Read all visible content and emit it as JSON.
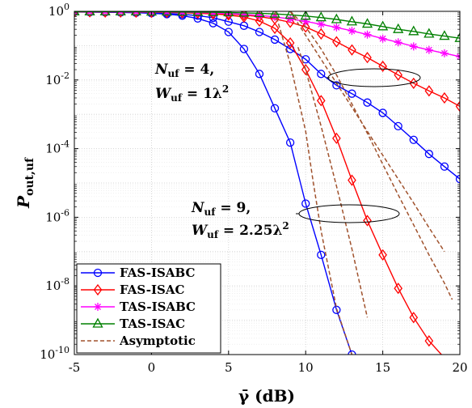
{
  "chart_data": {
    "type": "line",
    "xlabel": "γ̄ (dB)",
    "ylabel": "Pout,uf",
    "xlim": [
      -5,
      20
    ],
    "ylim": [
      1e-10,
      1
    ],
    "y_scale": "log",
    "grid": true,
    "legend_position": "bottom-left",
    "x_ticks": [
      "-5",
      "0",
      "5",
      "10",
      "15",
      "20"
    ],
    "y_ticks": [
      {
        "base": "10",
        "exp": "0"
      },
      {
        "base": "10",
        "exp": "-2"
      },
      {
        "base": "10",
        "exp": "-4"
      },
      {
        "base": "10",
        "exp": "-6"
      },
      {
        "base": "10",
        "exp": "-8"
      },
      {
        "base": "10",
        "exp": "-10"
      }
    ],
    "annotations": [
      {
        "line1": "Nuf = 4,",
        "line2": "Wuf = 1λ2"
      },
      {
        "line1": "Nuf = 9,",
        "line2": "Wuf = 2.25λ2"
      }
    ],
    "legend": [
      "FAS-ISABC",
      "FAS-ISAC",
      "TAS-ISABC",
      "TAS-ISAC",
      "Asymptotic"
    ],
    "colors": {
      "fas_isabc": "#0000ff",
      "fas_isac": "#ff0000",
      "tas_isabc": "#ff00ff",
      "tas_isac": "#008000",
      "asymptotic": "#a0522d"
    },
    "series": [
      {
        "name": "FAS-ISABC",
        "group": "N=4, W=1λ²",
        "marker": "circle",
        "color": "#0000ff",
        "x": [
          -5,
          -4,
          -3,
          -2,
          -1,
          0,
          1,
          2,
          3,
          4,
          5,
          6,
          7,
          8,
          9,
          10,
          11,
          12,
          13,
          14,
          15,
          16,
          17,
          18,
          19,
          20
        ],
        "y": [
          0.96,
          0.95,
          0.94,
          0.93,
          0.92,
          0.9,
          0.87,
          0.82,
          0.75,
          0.65,
          0.5,
          0.38,
          0.25,
          0.15,
          0.08,
          0.04,
          0.015,
          0.007,
          0.004,
          0.0022,
          0.0011,
          0.00045,
          0.00018,
          7e-05,
          3e-05,
          1.3e-05
        ]
      },
      {
        "name": "FAS-ISABC",
        "group": "N=9, W=2.25λ²",
        "marker": "circle",
        "color": "#0000ff",
        "x": [
          -5,
          -4,
          -3,
          -2,
          -1,
          0,
          1,
          2,
          3,
          4,
          5,
          6,
          7,
          8,
          9,
          10,
          11,
          12,
          13,
          13.3
        ],
        "y": [
          0.96,
          0.95,
          0.94,
          0.93,
          0.91,
          0.88,
          0.83,
          0.75,
          0.62,
          0.45,
          0.25,
          0.08,
          0.015,
          0.0015,
          0.00015,
          2.5e-06,
          8e-08,
          2e-09,
          1e-10,
          5e-11
        ]
      },
      {
        "name": "FAS-ISAC",
        "group": "N=4, W=1λ²",
        "marker": "diamond",
        "color": "#ff0000",
        "x": [
          -5,
          -4,
          -3,
          -2,
          -1,
          0,
          1,
          2,
          3,
          4,
          5,
          6,
          7,
          8,
          9,
          10,
          11,
          12,
          13,
          14,
          15,
          16,
          17,
          18,
          19,
          20
        ],
        "y": [
          0.97,
          0.97,
          0.96,
          0.96,
          0.95,
          0.95,
          0.94,
          0.93,
          0.91,
          0.88,
          0.84,
          0.78,
          0.7,
          0.6,
          0.48,
          0.35,
          0.22,
          0.13,
          0.075,
          0.045,
          0.025,
          0.014,
          0.008,
          0.0048,
          0.003,
          0.0017
        ]
      },
      {
        "name": "FAS-ISAC",
        "group": "N=9, W=2.25λ²",
        "marker": "diamond",
        "color": "#ff0000",
        "x": [
          -5,
          -4,
          -3,
          -2,
          -1,
          0,
          1,
          2,
          3,
          4,
          5,
          6,
          7,
          8,
          9,
          10,
          11,
          12,
          13,
          14,
          15,
          16,
          17,
          18,
          19,
          20
        ],
        "y": [
          0.97,
          0.97,
          0.96,
          0.96,
          0.95,
          0.94,
          0.93,
          0.91,
          0.88,
          0.84,
          0.78,
          0.68,
          0.52,
          0.32,
          0.12,
          0.02,
          0.0025,
          0.0002,
          1.2e-05,
          8e-07,
          8e-08,
          8.5e-09,
          1.2e-09,
          2.5e-10,
          8e-11,
          3e-11
        ]
      },
      {
        "name": "TAS-ISABC",
        "marker": "asterisk",
        "color": "#ff00ff",
        "x": [
          -5,
          -4,
          -3,
          -2,
          -1,
          0,
          1,
          2,
          3,
          4,
          5,
          6,
          7,
          8,
          9,
          10,
          11,
          12,
          13,
          14,
          15,
          16,
          17,
          18,
          19,
          20
        ],
        "y": [
          0.97,
          0.97,
          0.97,
          0.97,
          0.96,
          0.96,
          0.95,
          0.94,
          0.92,
          0.9,
          0.86,
          0.82,
          0.76,
          0.69,
          0.6,
          0.51,
          0.42,
          0.34,
          0.27,
          0.21,
          0.16,
          0.125,
          0.095,
          0.075,
          0.06,
          0.048
        ]
      },
      {
        "name": "TAS-ISAC",
        "marker": "triangle",
        "color": "#008000",
        "x": [
          -5,
          -4,
          -3,
          -2,
          -1,
          0,
          1,
          2,
          3,
          4,
          5,
          6,
          7,
          8,
          9,
          10,
          11,
          12,
          13,
          14,
          15,
          16,
          17,
          18,
          19,
          20
        ],
        "y": [
          0.98,
          0.98,
          0.98,
          0.98,
          0.98,
          0.97,
          0.97,
          0.96,
          0.95,
          0.94,
          0.92,
          0.9,
          0.88,
          0.84,
          0.79,
          0.73,
          0.66,
          0.58,
          0.5,
          0.43,
          0.36,
          0.3,
          0.26,
          0.22,
          0.19,
          0.165
        ]
      },
      {
        "name": "Asymptotic",
        "marker": "none",
        "dashed": true,
        "color": "#a0522d",
        "x": [
          9.5,
          10,
          10.5,
          11,
          12,
          13,
          14
        ],
        "y": [
          0.09,
          0.02,
          0.003,
          0.00045,
          8e-06,
          1.2e-07,
          1.2e-09
        ]
      },
      {
        "name": "Asymptotic",
        "marker": "none",
        "dashed": true,
        "color": "#a0522d",
        "x": [
          8,
          9,
          10,
          10.5,
          11,
          12,
          13,
          13.5
        ],
        "y": [
          1,
          0.03,
          0.00032,
          1e-05,
          4e-07,
          2.2e-09,
          1e-10,
          2e-11
        ]
      },
      {
        "name": "Asymptotic",
        "marker": "none",
        "dashed": true,
        "color": "#a0522d",
        "x": [
          9,
          10,
          11,
          12,
          13,
          14,
          15,
          16,
          17,
          18,
          19,
          19.5
        ],
        "y": [
          1,
          0.35,
          0.08,
          0.014,
          0.002,
          0.00028,
          3.5e-05,
          4.5e-06,
          6e-07,
          8e-08,
          1.2e-08,
          4e-09
        ]
      },
      {
        "name": "Asymptotic",
        "marker": "none",
        "dashed": true,
        "color": "#a0522d",
        "x": [
          9,
          10,
          11,
          12,
          13,
          14,
          15,
          16,
          17,
          18,
          19
        ],
        "y": [
          1,
          0.2,
          0.04,
          0.008,
          0.0016,
          0.00032,
          6.4e-05,
          1.3e-05,
          2.6e-06,
          5e-07,
          1e-07
        ]
      }
    ]
  }
}
